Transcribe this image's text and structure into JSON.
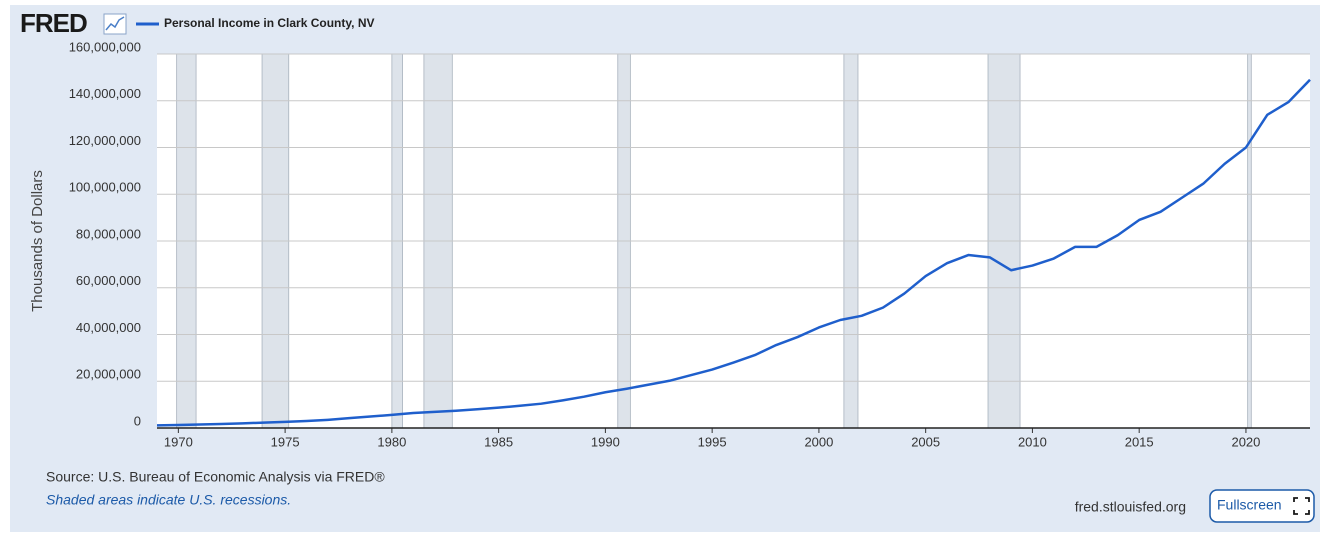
{
  "logo": "FRED",
  "chart_data": {
    "type": "line",
    "y_label": "Thousands of Dollars",
    "x": [
      1969,
      1970,
      1971,
      1972,
      1973,
      1974,
      1975,
      1976,
      1977,
      1978,
      1979,
      1980,
      1981,
      1982,
      1983,
      1984,
      1985,
      1986,
      1987,
      1988,
      1989,
      1990,
      1991,
      1992,
      1993,
      1994,
      1995,
      1996,
      1997,
      1998,
      1999,
      2000,
      2001,
      2002,
      2003,
      2004,
      2005,
      2006,
      2007,
      2008,
      2009,
      2010,
      2011,
      2012,
      2013,
      2014,
      2015,
      2016,
      2017,
      2018,
      2019,
      2020,
      2021,
      2022,
      2023
    ],
    "series": [
      {
        "name": "Personal Income in Clark County, NV",
        "color": "#1f5fcc",
        "values": [
          1100000,
          1300000,
          1500000,
          1700000,
          2000000,
          2300000,
          2600000,
          3000000,
          3500000,
          4200000,
          4900000,
          5600000,
          6400000,
          6900000,
          7400000,
          8000000,
          8700000,
          9500000,
          10400000,
          11800000,
          13400000,
          15300000,
          16800000,
          18500000,
          20200000,
          22600000,
          25000000,
          28000000,
          31200000,
          35500000,
          38900000,
          43000000,
          46200000,
          48000000,
          51500000,
          57500000,
          65000000,
          70500000,
          74000000,
          73000000,
          67500000,
          69500000,
          72500000,
          77500000,
          77500000,
          82500000,
          89000000,
          92500000,
          98500000,
          104500000,
          113000000,
          120000000,
          134000000,
          139500000,
          149000000
        ]
      }
    ],
    "recessions": [
      [
        1969.92,
        1970.83
      ],
      [
        1973.92,
        1975.17
      ],
      [
        1980.0,
        1980.5
      ],
      [
        1981.5,
        1982.83
      ],
      [
        1990.58,
        1991.17
      ],
      [
        2001.17,
        2001.83
      ],
      [
        2007.92,
        2009.42
      ],
      [
        2020.08,
        2020.25
      ]
    ],
    "recession_color": "#dde3ea",
    "xlim": [
      1969,
      2023
    ],
    "xticks": [
      1970,
      1975,
      1980,
      1985,
      1990,
      1995,
      2000,
      2005,
      2010,
      2015,
      2020
    ],
    "ylim": [
      0,
      160000000
    ],
    "yticks": [
      0,
      {
        "value": 20000000,
        "label": "20,000,000"
      },
      {
        "value": 40000000,
        "label": "40,000,000"
      },
      {
        "value": 60000000,
        "label": "60,000,000"
      },
      {
        "value": 80000000,
        "label": "80,000,000"
      },
      {
        "value": 100000000,
        "label": "100,000,000"
      },
      {
        "value": 120000000,
        "label": "120,000,000"
      },
      {
        "value": 140000000,
        "label": "140,000,000"
      },
      {
        "value": 160000000,
        "label": "160,000,000"
      }
    ],
    "grid": true
  },
  "footer": {
    "source": "Source: U.S. Bureau of Economic Analysis via FRED®",
    "note": "Shaded areas indicate U.S. recessions.",
    "site": "fred.stlouisfed.org",
    "button": "Fullscreen"
  }
}
